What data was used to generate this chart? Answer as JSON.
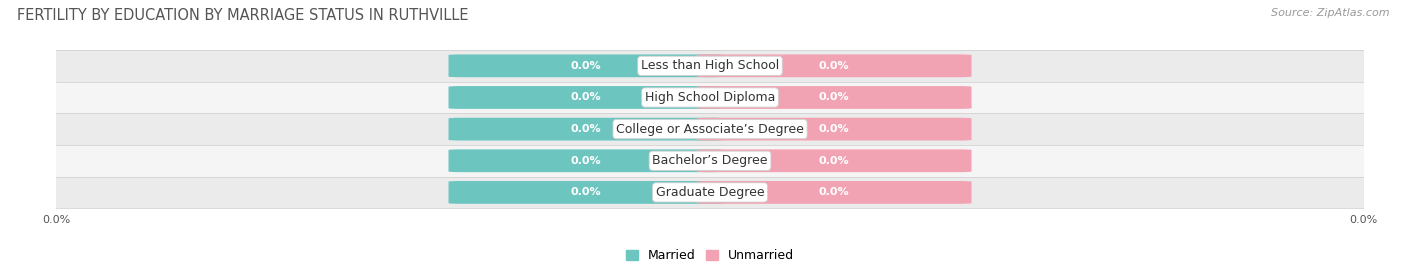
{
  "title": "FERTILITY BY EDUCATION BY MARRIAGE STATUS IN RUTHVILLE",
  "source": "Source: ZipAtlas.com",
  "categories": [
    "Less than High School",
    "High School Diploma",
    "College or Associate’s Degree",
    "Bachelor’s Degree",
    "Graduate Degree"
  ],
  "married_values": [
    0.0,
    0.0,
    0.0,
    0.0,
    0.0
  ],
  "unmarried_values": [
    0.0,
    0.0,
    0.0,
    0.0,
    0.0
  ],
  "married_color": "#6cc5bf",
  "unmarried_color": "#f2a3b3",
  "row_bg_colors": [
    "#ebebeb",
    "#f5f5f5"
  ],
  "title_fontsize": 10.5,
  "source_fontsize": 8,
  "bar_label_fontsize": 8,
  "cat_label_fontsize": 9,
  "tick_fontsize": 8,
  "legend_fontsize": 9,
  "value_label": "0.0%",
  "background_color": "#ffffff",
  "bar_height": 0.68,
  "bar_block_half": 0.38,
  "xlim": [
    -1.0,
    1.0
  ],
  "n_rows": 5
}
